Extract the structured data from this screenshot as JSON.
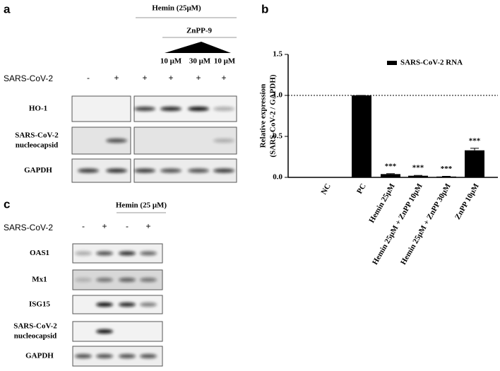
{
  "panel_a": {
    "label": "a",
    "treatment_header": "Hemin (25μM)",
    "inhibitor_header": "ZnPP-9",
    "concentrations": [
      "10 μM",
      "30 μM",
      "10 μM"
    ],
    "row_label": "SARS-CoV-2",
    "infection": [
      "-",
      "+",
      "+",
      "+",
      "+",
      "+"
    ],
    "blots": [
      {
        "name": [
          "HO-1"
        ]
      },
      {
        "name": [
          "SARS-CoV-2",
          "nucleocapsid"
        ]
      },
      {
        "name": [
          "GAPDH"
        ]
      }
    ]
  },
  "panel_b_label": "b",
  "panel_c": {
    "label": "c",
    "treatment_header": "Hemin (25 μM)",
    "row_label": "SARS-CoV-2",
    "infection": [
      "-",
      "+",
      "-",
      "+"
    ],
    "blots": [
      {
        "name": [
          "OAS1"
        ]
      },
      {
        "name": [
          "Mx1"
        ]
      },
      {
        "name": [
          "ISG15"
        ]
      },
      {
        "name": [
          "SARS-CoV-2",
          "nucleocapsid"
        ]
      },
      {
        "name": [
          "GAPDH"
        ]
      }
    ]
  },
  "chart_data": {
    "type": "bar",
    "y_label": [
      "Relative expression",
      "(SARS-CoV-2 / GAPDH)"
    ],
    "categories": [
      "NC",
      "PC",
      "Hemin 25μM",
      "Hemin 25μM + ZnPP 10μM",
      "Hemin 25μM + ZnPP 30μM",
      "ZnPP 10μM"
    ],
    "series": [
      {
        "name": "SARS-CoV-2 RNA",
        "color": "#000000",
        "values": [
          0,
          1.0,
          0.04,
          0.02,
          0.01,
          0.33
        ]
      }
    ],
    "errors": [
      0,
      0,
      0.005,
      0.004,
      0.003,
      0.025
    ],
    "significance": [
      null,
      null,
      "***",
      "***",
      "***",
      "***"
    ],
    "ylim": [
      0,
      1.5
    ],
    "yticks": [
      {
        "value": 0,
        "label": "0.0"
      },
      {
        "value": 0.5,
        "label": "0.5"
      },
      {
        "value": 1,
        "label": "1.0"
      },
      {
        "value": 1.5,
        "label": "1.5"
      }
    ],
    "reference_line": 1,
    "legend": "upper right"
  }
}
